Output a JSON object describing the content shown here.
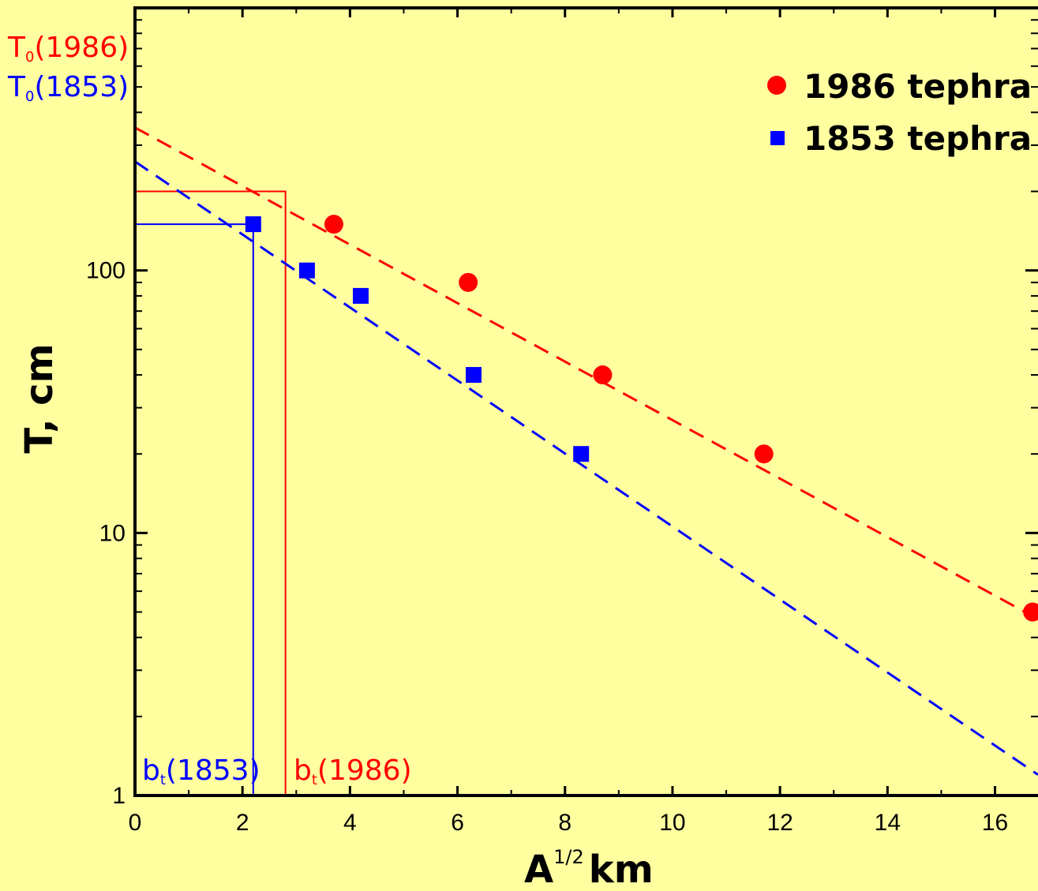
{
  "chart_data": {
    "type": "scatter",
    "title": "",
    "xlabel": "A",
    "xlabel_sup": "1/2",
    "xlabel_unit": "km",
    "ylabel": "T, cm",
    "xlim": [
      0,
      16.8
    ],
    "ylim": [
      1,
      1000
    ],
    "y_scale": "log",
    "grid": false,
    "legend_position": "top-right",
    "x_ticks": [
      "0",
      "2",
      "4",
      "6",
      "8",
      "10",
      "12",
      "14",
      "16"
    ],
    "y_ticks": [
      "1",
      "10",
      "100"
    ],
    "colors": {
      "s1986": "#FF0000",
      "s1853": "#0000FF",
      "background": "#FFFFA0"
    },
    "series": [
      {
        "name": "1986 tephra",
        "marker": "circle",
        "color": "#FF0000",
        "x": [
          3.7,
          6.2,
          8.7,
          11.7,
          16.7
        ],
        "y": [
          150,
          90,
          40,
          20,
          5
        ],
        "fit_line": {
          "x": [
            0,
            16.8
          ],
          "y": [
            350,
            4.7
          ]
        }
      },
      {
        "name": "1853 tephra",
        "marker": "square",
        "color": "#0000FF",
        "x": [
          2.2,
          3.2,
          4.2,
          6.3,
          8.3
        ],
        "y": [
          150,
          100,
          80,
          40,
          20
        ],
        "fit_line": {
          "x": [
            0,
            16.8
          ],
          "y": [
            260,
            1.2
          ]
        }
      }
    ],
    "guides": [
      {
        "color": "#FF0000",
        "x": 2.8,
        "y": 200
      },
      {
        "color": "#0000FF",
        "x": 2.2,
        "y": 150
      }
    ],
    "annotations": {
      "t0_1986": {
        "main": "T",
        "sub": "0",
        "rest": "(1986)"
      },
      "t0_1853": {
        "main": "T",
        "sub": "0",
        "rest": "(1853)"
      },
      "bt_1853": {
        "main": "b",
        "sub": "t",
        "rest": "(1853)"
      },
      "bt_1986": {
        "main": "b",
        "sub": "t",
        "rest": "(1986)"
      }
    }
  }
}
